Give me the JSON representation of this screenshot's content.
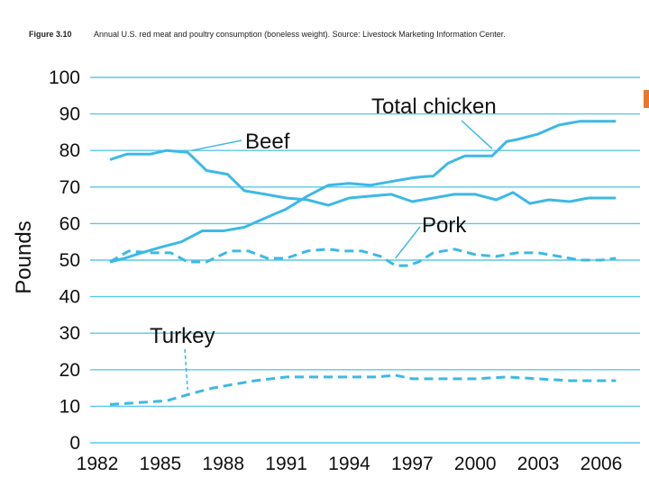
{
  "caption": {
    "figure_label": "Figure 3.10",
    "text": "Annual U.S. red meat and poultry consumption (boneless weight). Source: Livestock Marketing Information Center."
  },
  "colors": {
    "series": "#3cb9e6",
    "grid": "#5bc8e8",
    "accent": "#e8792a"
  },
  "chart_data": {
    "type": "line",
    "title": "",
    "xlabel": "",
    "ylabel": "Pounds",
    "xlim": [
      1982,
      2007
    ],
    "ylim": [
      0,
      100
    ],
    "yticks": [
      0,
      10,
      20,
      30,
      40,
      50,
      60,
      70,
      80,
      90,
      100
    ],
    "xticks": [
      1982,
      1985,
      1988,
      1991,
      1994,
      1997,
      2000,
      2003,
      2006
    ],
    "grid": true,
    "series": [
      {
        "name": "Total chicken",
        "style": "solid",
        "x": [
          1982.6,
          1983.3,
          1984.1,
          1985,
          1986,
          1987,
          1988,
          1989,
          1990,
          1991,
          1992,
          1993,
          1994,
          1995,
          1996,
          1997,
          1997.5,
          1998,
          1998.7,
          1999.5,
          2000,
          2000.8,
          2001.5,
          2002,
          2003,
          2004,
          2005,
          2006,
          2006.7
        ],
        "values": [
          49.5,
          50.5,
          52,
          53.5,
          55,
          58,
          58,
          59,
          61.5,
          64,
          67.5,
          70.5,
          71,
          70.5,
          71.5,
          72.5,
          72.8,
          73,
          76.5,
          78.5,
          78.5,
          78.5,
          82.5,
          83,
          84.5,
          87,
          88,
          88,
          88
        ]
      },
      {
        "name": "Beef",
        "style": "solid",
        "x": [
          1982.6,
          1983.4,
          1984.5,
          1985.3,
          1986.3,
          1987.2,
          1988.2,
          1989,
          1990,
          1991,
          1992,
          1993,
          1994,
          1995,
          1996,
          1997,
          1998,
          1999,
          2000,
          2001,
          2001.8,
          2002.6,
          2003.5,
          2004.5,
          2005.4,
          2006.7
        ],
        "values": [
          77.5,
          79,
          79,
          80,
          79.5,
          74.5,
          73.5,
          69,
          68,
          67,
          66.5,
          65,
          67,
          67.5,
          68,
          66,
          67,
          68,
          68,
          66.5,
          68.5,
          65.5,
          66.5,
          66,
          67,
          67
        ]
      },
      {
        "name": "Pork",
        "style": "dashed",
        "x": [
          1982.6,
          1983.5,
          1984.5,
          1985.5,
          1986.3,
          1987.2,
          1988.3,
          1989.2,
          1990.1,
          1991,
          1992,
          1993,
          1993.7,
          1994.6,
          1995.5,
          1996.2,
          1996.8,
          1997.3,
          1998,
          1999,
          2000,
          2001,
          2002,
          2003,
          2004,
          2005,
          2006,
          2006.7
        ],
        "values": [
          49.5,
          52.5,
          52,
          52,
          49.5,
          49.5,
          52.5,
          52.5,
          50.5,
          50.5,
          52.5,
          53,
          52.5,
          52.5,
          51,
          48.5,
          48.5,
          49.5,
          52,
          53,
          51.5,
          51,
          52,
          52,
          51,
          50,
          50,
          50.5
        ]
      },
      {
        "name": "Turkey",
        "style": "dashed",
        "x": [
          1982.6,
          1984,
          1985.3,
          1986.5,
          1987.5,
          1988.5,
          1989.5,
          1991,
          1992.5,
          1994,
          1995.3,
          1996.2,
          1997,
          1998.5,
          2000,
          2001.5,
          2003,
          2004.5,
          2006.7
        ],
        "values": [
          10.5,
          11,
          11.5,
          13.5,
          15,
          16,
          17,
          18,
          18,
          18,
          18,
          18.5,
          17.5,
          17.5,
          17.5,
          18,
          17.5,
          17,
          17
        ]
      }
    ],
    "annotations": [
      {
        "text": "Total chicken",
        "series": "Total chicken",
        "x": 2000.8,
        "y": 80.5
      },
      {
        "text": "Beef",
        "series": "Beef",
        "x": 1986.5,
        "y": 80
      },
      {
        "text": "Pork",
        "series": "Pork",
        "x": 1996.2,
        "y": 50.5
      },
      {
        "text": "Turkey",
        "series": "Turkey",
        "x": 1986.3,
        "y": 14.5
      }
    ]
  }
}
